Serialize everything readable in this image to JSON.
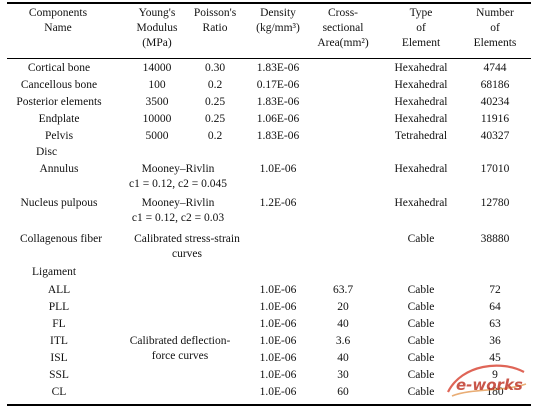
{
  "headers": {
    "col1": [
      "Components",
      "Name"
    ],
    "col2": [
      "Young's",
      "Modulus",
      "(MPa)"
    ],
    "col3": [
      "Poisson's",
      "Ratio"
    ],
    "col4": [
      "Density",
      "(kg/mm³)"
    ],
    "col5": [
      "Cross-",
      "sectional",
      "Area(mm²)"
    ],
    "col6": [
      "Type",
      "of",
      "Element"
    ],
    "col7": [
      "Number",
      "of",
      "Elements"
    ]
  },
  "rows": {
    "r1": {
      "name": "Cortical bone",
      "modulus": "14000",
      "poisson": "0.30",
      "density": "1.83E-06",
      "type": "Hexahedral",
      "number": "4744"
    },
    "r2": {
      "name": "Cancellous bone",
      "modulus": "100",
      "poisson": "0.2",
      "density": "0.17E-06",
      "type": "Hexahedral",
      "number": "68186"
    },
    "r3": {
      "name": "Posterior elements",
      "modulus": "3500",
      "poisson": "0.25",
      "density": "1.83E-06",
      "type": "Hexahedral",
      "number": "40234"
    },
    "r4": {
      "name": "Endplate",
      "modulus": "10000",
      "poisson": "0.25",
      "density": "1.06E-06",
      "type": "Hexahedral",
      "number": "11916"
    },
    "r5": {
      "name": "Pelvis",
      "modulus": "5000",
      "poisson": "0.2",
      "density": "1.83E-06",
      "type": "Tetrahedral",
      "number": "40327"
    },
    "disc": {
      "name": "Disc"
    },
    "annulus": {
      "name": "Annulus",
      "material_l1": "Mooney–Rivlin",
      "material_l2": "c1 = 0.12, c2 = 0.045",
      "density": "1.0E-06",
      "type": "Hexahedral",
      "number": "17010"
    },
    "nucleus": {
      "name": "Nucleus pulpous",
      "material_l1": "Mooney–Rivlin",
      "material_l2": "c1 = 0.12, c2 = 0.03",
      "density": "1.2E-06",
      "type": "Hexahedral",
      "number": "12780"
    },
    "collagen": {
      "name": "Collagenous fiber",
      "material_l1": "Calibrated stress-strain",
      "material_l2": "curves",
      "type": "Cable",
      "number": "38880"
    },
    "ligament": {
      "name": "Ligament",
      "material_l1": "Calibrated deflection-",
      "material_l2": "force curves"
    },
    "all": {
      "name": "ALL",
      "density": "1.0E-06",
      "area": "63.7",
      "type": "Cable",
      "number": "72"
    },
    "pll": {
      "name": "PLL",
      "density": "1.0E-06",
      "area": "20",
      "type": "Cable",
      "number": "64"
    },
    "fl": {
      "name": "FL",
      "density": "1.0E-06",
      "area": "40",
      "type": "Cable",
      "number": "63"
    },
    "itl": {
      "name": "ITL",
      "density": "1.0E-06",
      "area": "3.6",
      "type": "Cable",
      "number": "36"
    },
    "isl": {
      "name": "ISL",
      "density": "1.0E-06",
      "area": "40",
      "type": "Cable",
      "number": "45"
    },
    "ssl": {
      "name": "SSL",
      "density": "1.0E-06",
      "area": "30",
      "type": "Cable",
      "number": "9"
    },
    "cl": {
      "name": "CL",
      "density": "1.0E-06",
      "area": "60",
      "type": "Cable",
      "number": "180"
    }
  },
  "watermark": {
    "text": "e-works",
    "color": "#c0392b"
  }
}
